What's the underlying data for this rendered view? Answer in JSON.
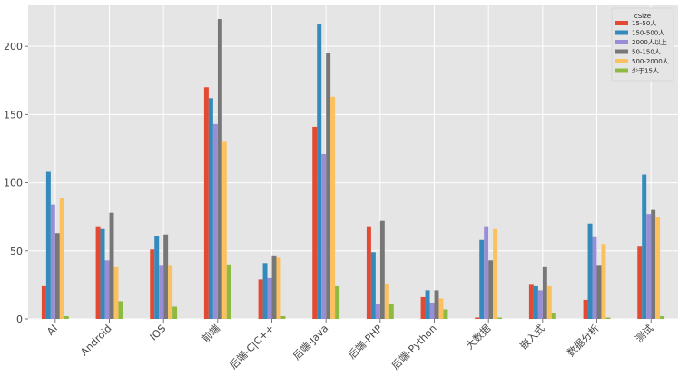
{
  "chart_data": {
    "type": "bar",
    "title": "",
    "xlabel": "",
    "ylabel": "",
    "ylim": [
      0,
      230
    ],
    "yticks": [
      0,
      50,
      100,
      150,
      200
    ],
    "grid": true,
    "legend_position": "top-right",
    "legend_title": "cSize",
    "categories": [
      "AI",
      "Android",
      "IOS",
      "前端",
      "后端-C|C++",
      "后端-Java",
      "后端-PHP",
      "后端-Python",
      "大数据",
      "嵌入式",
      "数据分析",
      "测试"
    ],
    "series": [
      {
        "name": "15-50人",
        "color": "#E24A33",
        "values": [
          24,
          68,
          51,
          170,
          29,
          141,
          68,
          16,
          1,
          25,
          14,
          53
        ]
      },
      {
        "name": "150-500人",
        "color": "#348ABD",
        "values": [
          108,
          66,
          61,
          162,
          41,
          216,
          49,
          21,
          58,
          24,
          70,
          106
        ]
      },
      {
        "name": "2000人以上",
        "color": "#988ED5",
        "values": [
          84,
          43,
          39,
          143,
          30,
          121,
          11,
          12,
          68,
          21,
          60,
          77
        ]
      },
      {
        "name": "50-150人",
        "color": "#777777",
        "values": [
          63,
          78,
          62,
          220,
          46,
          195,
          72,
          21,
          43,
          38,
          39,
          80
        ]
      },
      {
        "name": "500-2000人",
        "color": "#FBC15E",
        "values": [
          89,
          38,
          39,
          130,
          45,
          163,
          26,
          15,
          66,
          24,
          55,
          75
        ]
      },
      {
        "name": "少于15人",
        "color": "#8EBA42",
        "values": [
          2,
          13,
          9,
          40,
          2,
          24,
          11,
          7,
          1,
          4,
          1,
          2
        ]
      }
    ]
  }
}
